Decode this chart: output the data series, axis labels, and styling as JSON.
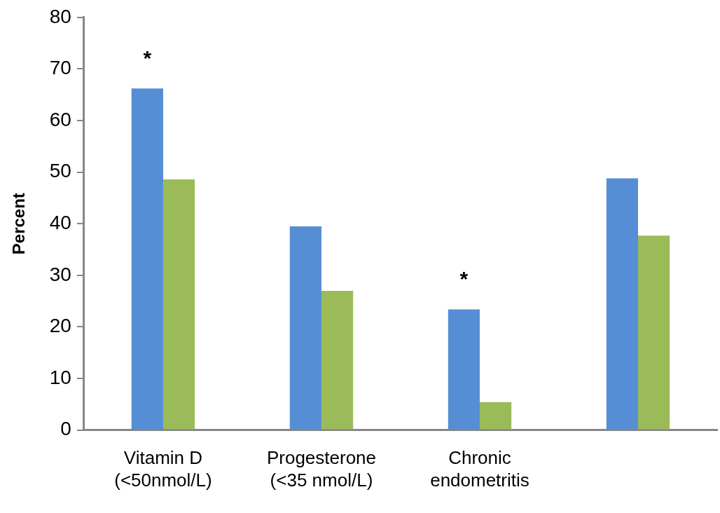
{
  "chart_data": {
    "type": "bar",
    "ylabel": "Percent",
    "categories": [
      "Vitamin D\n(<50nmol/L)",
      "Progesterone\n(<35 nmol/L)",
      "Chronic\nendometritis",
      null
    ],
    "series": [
      {
        "color": "#558ed5",
        "values": [
          66.2,
          39.5,
          23.4,
          48.8
        ]
      },
      {
        "color": "#9bbb59",
        "values": [
          48.6,
          27.0,
          5.4,
          37.7
        ]
      }
    ],
    "ylim": [
      0,
      80
    ],
    "yticks": [
      0,
      10,
      20,
      30,
      40,
      50,
      60,
      70,
      80
    ],
    "grid": false,
    "legend": false,
    "annotations": [
      {
        "text": "*",
        "x": "Vitamin D\n(<50nmol/L)",
        "y": 66.2
      },
      {
        "text": "*",
        "x": "Chronic\nendometritis",
        "y": 23.4
      }
    ]
  }
}
